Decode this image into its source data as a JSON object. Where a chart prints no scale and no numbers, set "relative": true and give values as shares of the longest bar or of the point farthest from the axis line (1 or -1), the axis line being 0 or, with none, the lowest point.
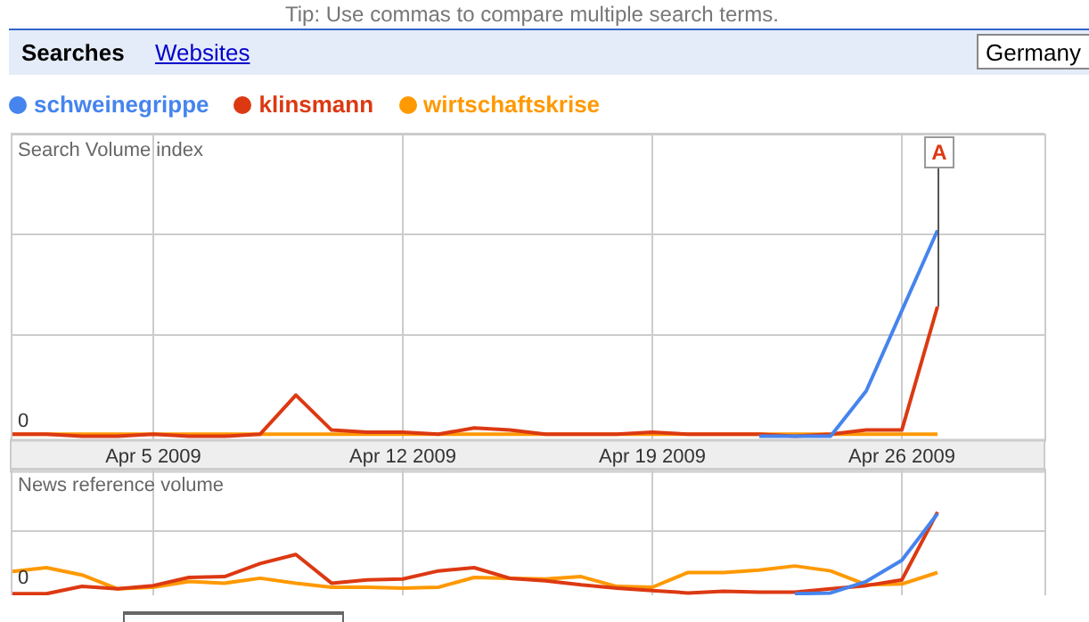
{
  "chart_data": [
    {
      "type": "line",
      "title": "Search Volume index",
      "relative": true,
      "grid": true,
      "legend": "top left",
      "marker": "none",
      "line_style": "solid",
      "x": [
        "2009-04-01",
        "2009-04-02",
        "2009-04-03",
        "2009-04-04",
        "2009-04-05",
        "2009-04-06",
        "2009-04-07",
        "2009-04-08",
        "2009-04-09",
        "2009-04-10",
        "2009-04-11",
        "2009-04-12",
        "2009-04-13",
        "2009-04-14",
        "2009-04-15",
        "2009-04-16",
        "2009-04-17",
        "2009-04-18",
        "2009-04-19",
        "2009-04-20",
        "2009-04-21",
        "2009-04-22",
        "2009-04-23",
        "2009-04-24",
        "2009-04-25",
        "2009-04-26",
        "2009-04-27"
      ],
      "xlim": [
        "2009-04-01",
        "2009-04-30"
      ],
      "xticks": [
        {
          "value": "2009-04-05",
          "label": "Apr 5 2009"
        },
        {
          "value": "2009-04-12",
          "label": "Apr 12 2009"
        },
        {
          "value": "2009-04-19",
          "label": "Apr 19 2009"
        },
        {
          "value": "2009-04-26",
          "label": "Apr 26 2009"
        }
      ],
      "series": [
        {
          "name": "schweinegrippe",
          "color": "#4684ee",
          "values": [
            null,
            null,
            null,
            null,
            null,
            null,
            null,
            null,
            null,
            null,
            null,
            null,
            null,
            null,
            null,
            null,
            null,
            null,
            null,
            null,
            null,
            0,
            0,
            0,
            0.22,
            0.61,
            1
          ]
        },
        {
          "name": "klinsmann",
          "color": "#dc3912",
          "values": [
            0.01,
            0.01,
            0,
            0,
            0.01,
            0,
            0,
            0.01,
            0.2,
            0.03,
            0.02,
            0.02,
            0.01,
            0.04,
            0.03,
            0.01,
            0.01,
            0.01,
            0.02,
            0.01,
            0.01,
            0.01,
            0,
            0.01,
            0.03,
            0.03,
            0.63
          ]
        },
        {
          "name": "wirtschaftskrise",
          "color": "#ff9900",
          "values": [
            0.01,
            0.01,
            0.01,
            0.01,
            0.01,
            0.01,
            0.01,
            0.01,
            0.01,
            0.01,
            0.01,
            0.01,
            0.01,
            0.01,
            0.01,
            0.01,
            0.01,
            0.01,
            0.01,
            0.01,
            0.01,
            0.01,
            0.01,
            0.01,
            0.01,
            0.01,
            0.01
          ]
        }
      ],
      "annotations": [
        "Tip: Use commas to compare multiple search terms.",
        "Searches",
        "Websites",
        "Germany",
        "0",
        {
          "text": "A",
          "x": "2009-04-27"
        }
      ]
    },
    {
      "type": "line",
      "title": "News reference volume",
      "relative": true,
      "grid": true,
      "legend": false,
      "marker": "none",
      "line_style": "solid",
      "tick_labels": false,
      "x": [
        "2009-04-01",
        "2009-04-02",
        "2009-04-03",
        "2009-04-04",
        "2009-04-05",
        "2009-04-06",
        "2009-04-07",
        "2009-04-08",
        "2009-04-09",
        "2009-04-10",
        "2009-04-11",
        "2009-04-12",
        "2009-04-13",
        "2009-04-14",
        "2009-04-15",
        "2009-04-16",
        "2009-04-17",
        "2009-04-18",
        "2009-04-19",
        "2009-04-20",
        "2009-04-21",
        "2009-04-22",
        "2009-04-23",
        "2009-04-24",
        "2009-04-25",
        "2009-04-26",
        "2009-04-27"
      ],
      "xlim": [
        "2009-04-01",
        "2009-04-30"
      ],
      "xticks": [
        {
          "value": "2009-04-05",
          "label": null
        },
        {
          "value": "2009-04-12",
          "label": null
        },
        {
          "value": "2009-04-19",
          "label": null
        },
        {
          "value": "2009-04-26",
          "label": null
        }
      ],
      "series": [
        {
          "color": "#4684ee",
          "values": [
            null,
            null,
            null,
            null,
            null,
            null,
            null,
            null,
            null,
            null,
            null,
            null,
            null,
            null,
            null,
            null,
            null,
            null,
            null,
            null,
            null,
            null,
            0,
            0.01,
            0.15,
            0.41,
            0.98
          ]
        },
        {
          "color": "#dc3912",
          "values": [
            0,
            0,
            0.09,
            0.06,
            0.1,
            0.2,
            0.21,
            0.37,
            0.48,
            0.13,
            0.17,
            0.18,
            0.28,
            0.32,
            0.19,
            0.16,
            0.11,
            0.07,
            0.04,
            0.01,
            0.03,
            0.02,
            0.02,
            0.06,
            0.1,
            0.17,
            1
          ]
        },
        {
          "color": "#ff9900",
          "values": [
            0.27,
            0.32,
            0.23,
            0.06,
            0.08,
            0.15,
            0.13,
            0.19,
            0.13,
            0.08,
            0.08,
            0.07,
            0.08,
            0.2,
            0.19,
            0.18,
            0.21,
            0.09,
            0.08,
            0.26,
            0.26,
            0.29,
            0.34,
            0.28,
            0.11,
            0.12,
            0.26
          ]
        }
      ],
      "annotations": [
        "0"
      ]
    }
  ]
}
